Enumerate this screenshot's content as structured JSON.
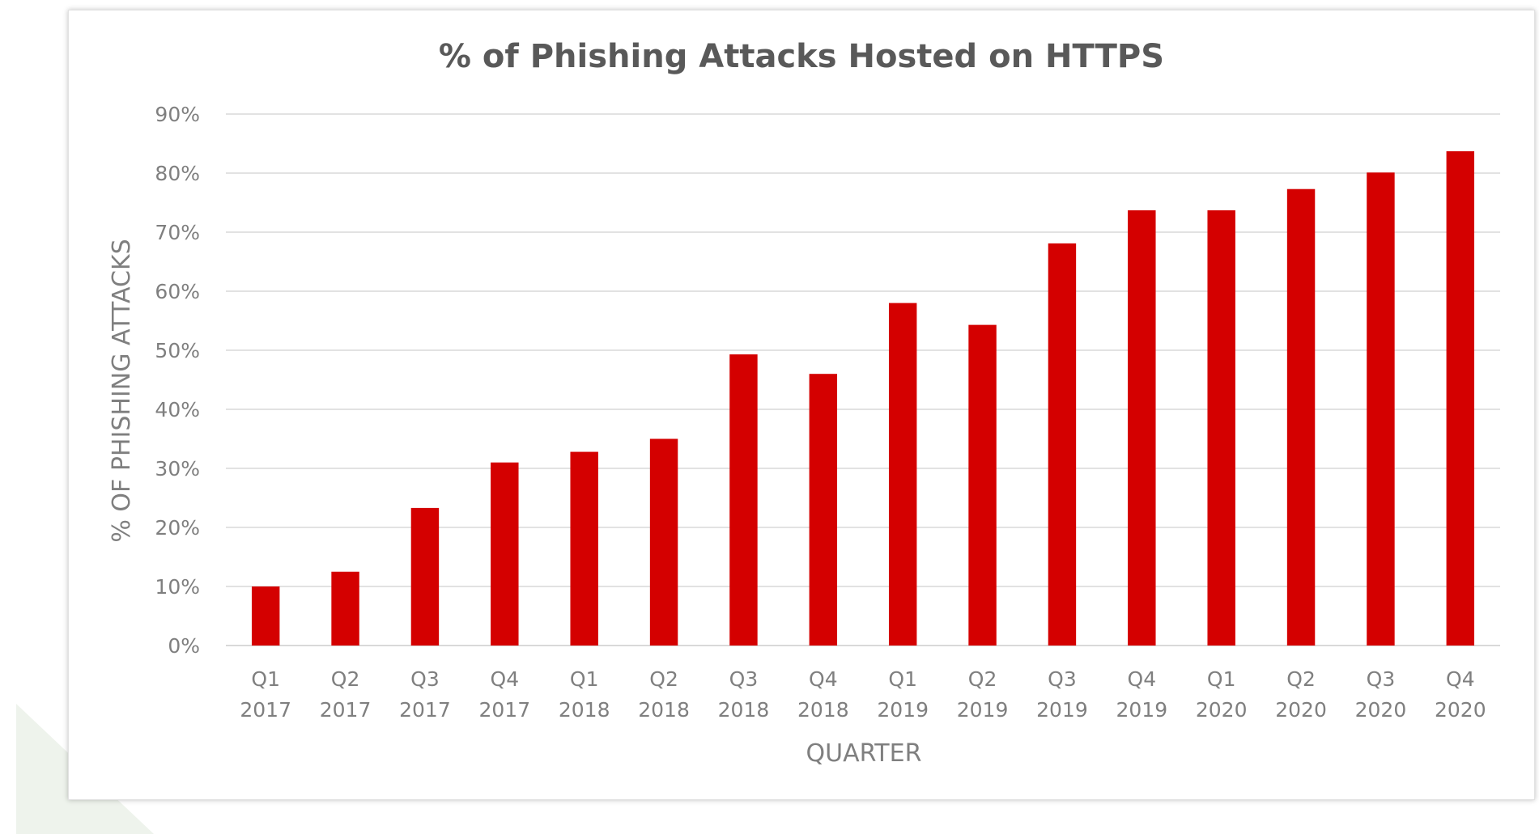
{
  "chart_data": {
    "type": "bar",
    "title": "% of Phishing Attacks Hosted on HTTPS",
    "xlabel": "QUARTER",
    "ylabel": "% OF PHISHING ATTACKS",
    "categories": [
      [
        "Q1",
        "2017"
      ],
      [
        "Q2",
        "2017"
      ],
      [
        "Q3",
        "2017"
      ],
      [
        "Q4",
        "2017"
      ],
      [
        "Q1",
        "2018"
      ],
      [
        "Q2",
        "2018"
      ],
      [
        "Q3",
        "2018"
      ],
      [
        "Q4",
        "2018"
      ],
      [
        "Q1",
        "2019"
      ],
      [
        "Q2",
        "2019"
      ],
      [
        "Q3",
        "2019"
      ],
      [
        "Q4",
        "2019"
      ],
      [
        "Q1",
        "2020"
      ],
      [
        "Q2",
        "2020"
      ],
      [
        "Q3",
        "2020"
      ],
      [
        "Q4",
        "2020"
      ]
    ],
    "values": [
      10,
      12.5,
      23.3,
      31,
      32.8,
      35,
      49.3,
      46,
      58,
      54.3,
      68.1,
      73.7,
      73.7,
      77.3,
      80.1,
      83.7
    ],
    "ylim": [
      0,
      90
    ],
    "yticks": [
      "0%",
      "10%",
      "20%",
      "30%",
      "40%",
      "50%",
      "60%",
      "70%",
      "80%",
      "90%"
    ],
    "grid": true,
    "legend": "none",
    "bar_color": "#d40000",
    "grid_color": "#d9d9d9"
  }
}
